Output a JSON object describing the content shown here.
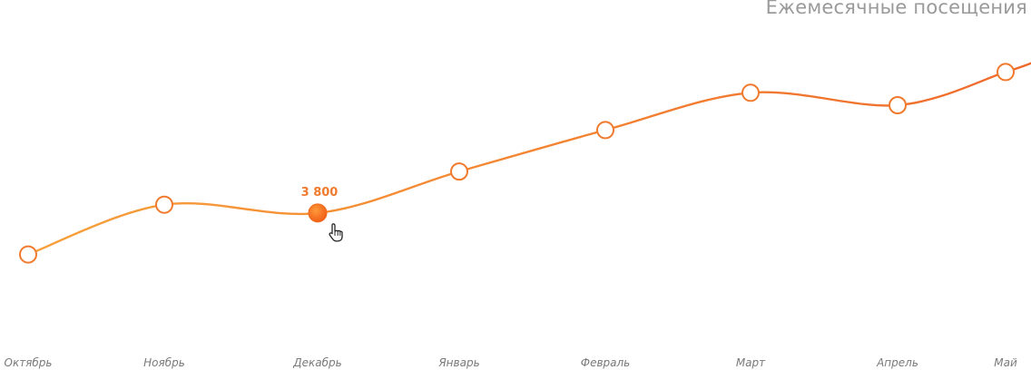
{
  "chart": {
    "title": "Ежемесячные посещения"
  },
  "chart_data": {
    "type": "line",
    "title": "Ежемесячные посещения",
    "categories": [
      "Октябрь",
      "Ноябрь",
      "Декабрь",
      "Январь",
      "Февраль",
      "Март",
      "Апрель",
      "Май"
    ],
    "values": [
      2800,
      4000,
      3800,
      4800,
      5800,
      6700,
      6400,
      7200
    ],
    "ylim": [
      1500,
      8500
    ],
    "grid": false,
    "highlighted": {
      "index": 2,
      "label": "3 800"
    },
    "colors": {
      "line": "#f07a2e",
      "point_fill": "#ffffff",
      "point_stroke": "#f07a2e",
      "highlight": "#f26a1b",
      "dropline": "#b0b0b0",
      "dropline_highlight": "#f4a070"
    }
  }
}
